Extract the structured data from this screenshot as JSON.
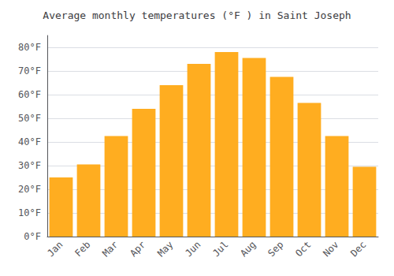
{
  "chart_data": {
    "type": "bar",
    "title": "Average monthly temperatures (°F ) in Saint Joseph",
    "categories": [
      "Jan",
      "Feb",
      "Mar",
      "Apr",
      "May",
      "Jun",
      "Jul",
      "Aug",
      "Sep",
      "Oct",
      "Nov",
      "Dec"
    ],
    "values": [
      25,
      30.5,
      42.5,
      54,
      64,
      73,
      78,
      75.5,
      67.5,
      56.5,
      42.5,
      29.5
    ],
    "color": "#FFAD20",
    "ylim": [
      0,
      85
    ],
    "yticks": [
      {
        "value": 0,
        "label": "0°F"
      },
      {
        "value": 10,
        "label": "10°F"
      },
      {
        "value": 20,
        "label": "20°F"
      },
      {
        "value": 30,
        "label": "30°F"
      },
      {
        "value": 40,
        "label": "40°F"
      },
      {
        "value": 50,
        "label": "50°F"
      },
      {
        "value": 60,
        "label": "60°F"
      },
      {
        "value": 70,
        "label": "70°F"
      },
      {
        "value": 80,
        "label": "80°F"
      }
    ],
    "grid": true
  }
}
